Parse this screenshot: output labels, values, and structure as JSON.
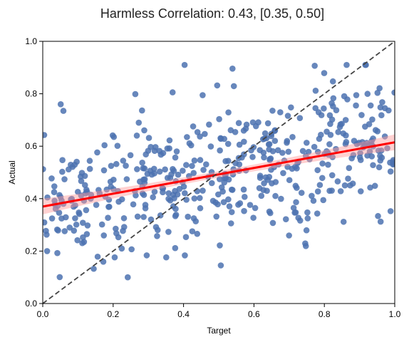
{
  "chart_data": {
    "type": "scatter",
    "title": "Harmless Correlation: 0.43, [0.35, 0.50]",
    "xlabel": "Target",
    "ylabel": "Actual",
    "xlim": [
      0,
      1
    ],
    "ylim": [
      0,
      1
    ],
    "xticks": [
      "0.0",
      "0.2",
      "0.4",
      "0.6",
      "0.8",
      "1.0"
    ],
    "yticks": [
      "0.0",
      "0.2",
      "0.4",
      "0.6",
      "0.8",
      "1.0"
    ],
    "grid": false,
    "colors": {
      "points": "#4c72b0",
      "regression": "#ff0000",
      "ci_band": "#ff9999",
      "identity_line": "#444444"
    },
    "regression": {
      "intercept": 0.37,
      "slope": 0.245,
      "ci_halfwidth_center": 0.012,
      "ci_halfwidth_edge": 0.03
    },
    "identity_line": {
      "x": [
        0,
        1
      ],
      "y": [
        0,
        1
      ]
    },
    "series": [
      {
        "name": "harmless",
        "n": 500,
        "note": "500 scattered points, target uniformly spread over [0,1], actual roughly 0.37 + 0.245*target with residual sd ~0.14, clipped to [0.1, 0.91]"
      }
    ]
  }
}
